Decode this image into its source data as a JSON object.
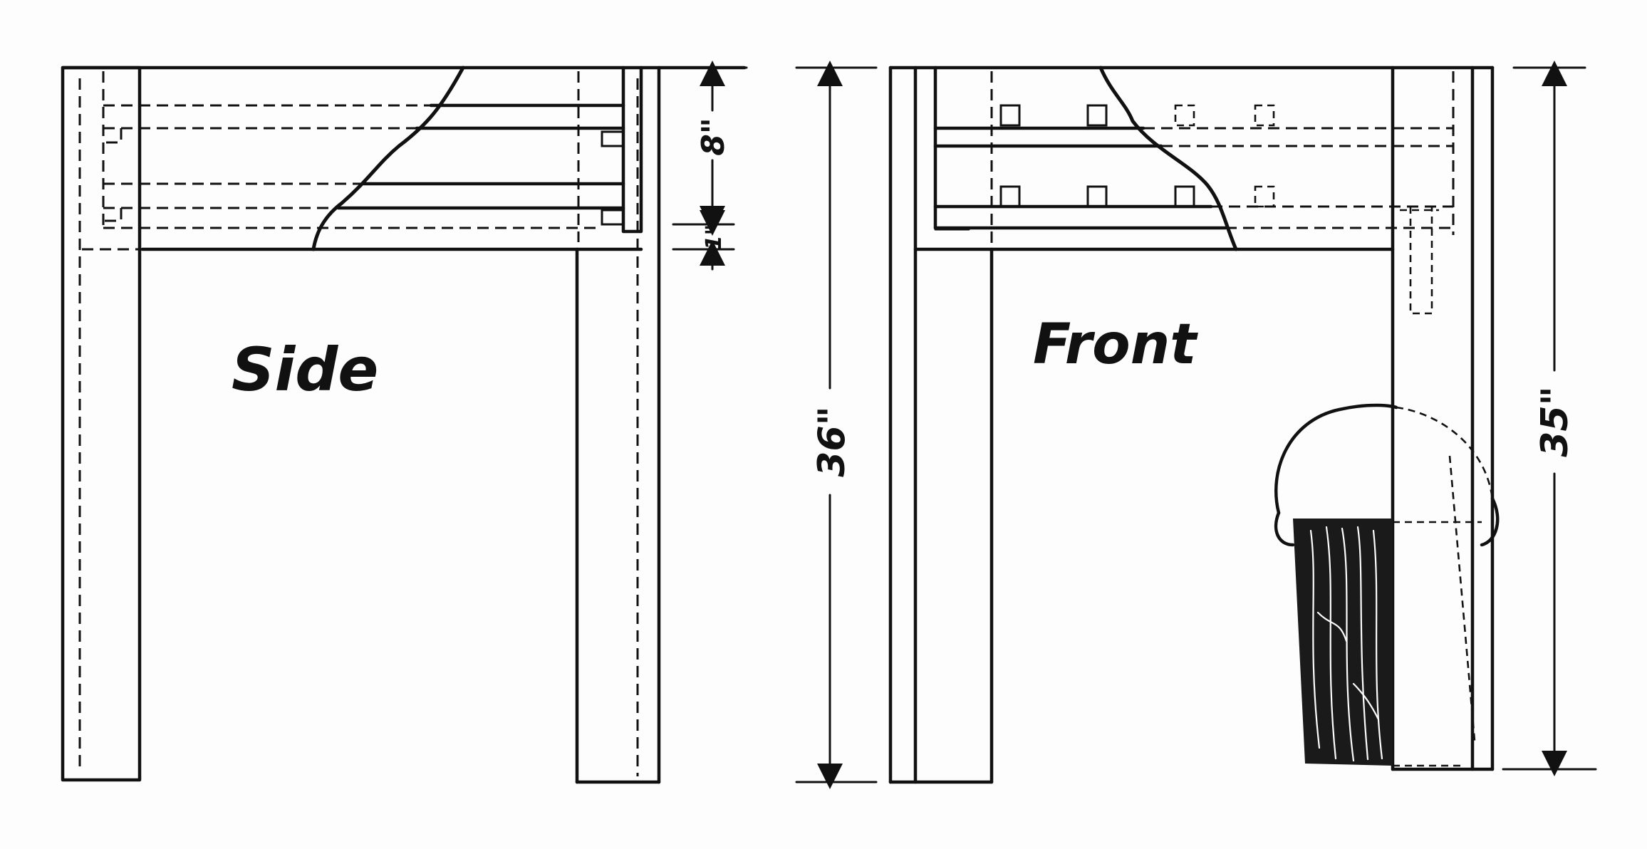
{
  "views": {
    "side": {
      "label": "Side"
    },
    "front": {
      "label": "Front"
    }
  },
  "dimensions": {
    "apron_depth": "8\"",
    "bottom_rail": "1\"",
    "front_height": "36\"",
    "right_height": "35\""
  },
  "colors": {
    "ink": "#111111",
    "paper": "#fdfdfd"
  }
}
